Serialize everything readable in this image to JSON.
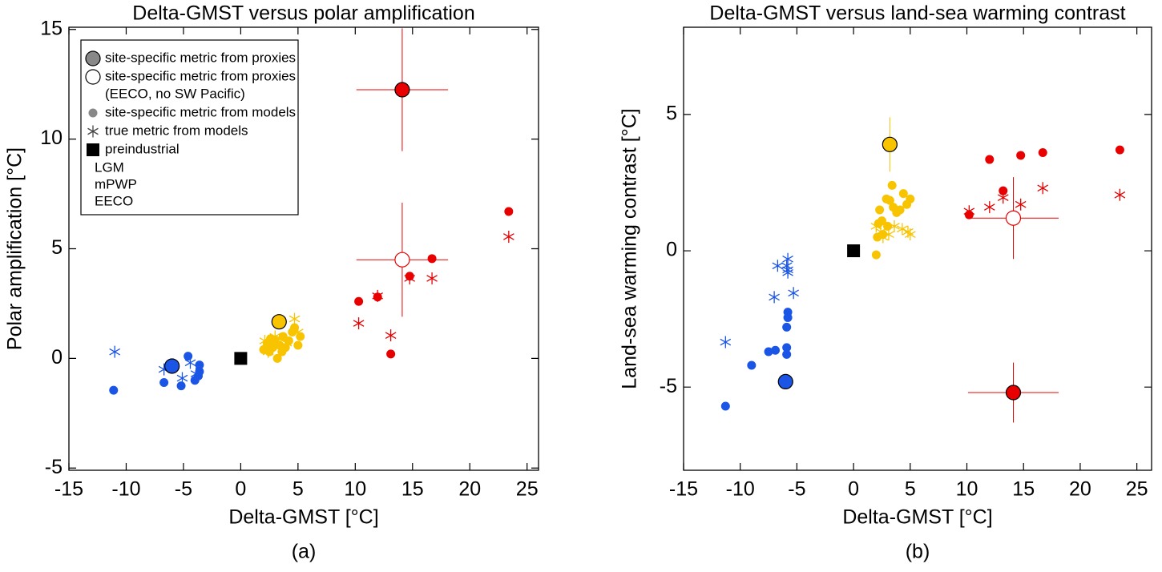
{
  "chart_data": [
    {
      "type": "scatter",
      "title": "Delta-GMST versus polar amplification",
      "xlabel": "Delta-GMST [°C]",
      "ylabel": "Polar amplification [°C]",
      "caption": "(a)",
      "xlim": [
        -15,
        26
      ],
      "ylim": [
        -5.1,
        15.1
      ],
      "xticks": [
        -15,
        -10,
        -5,
        0,
        5,
        10,
        15,
        20,
        25
      ],
      "yticks": [
        -5,
        0,
        5,
        10,
        15
      ],
      "legend": {
        "position": "upper left",
        "entries": [
          {
            "label": "site-specific metric from proxies",
            "marker": "proxy"
          },
          {
            "label": "site-specific metric from proxies",
            "sublabel": "(EECO, no SW Pacific)",
            "marker": "open"
          },
          {
            "label": "site-specific metric from models",
            "marker": "dot"
          },
          {
            "label": "true metric from models",
            "marker": "asterisk"
          },
          {
            "label": "preindustrial",
            "marker": "square"
          }
        ],
        "eras": [
          {
            "label": "LGM",
            "color": "#1a55e6"
          },
          {
            "label": "mPWP",
            "color": "#f8c400"
          },
          {
            "label": "EECO",
            "color": "#e80000"
          }
        ]
      },
      "series": [
        {
          "marker": "asterisk",
          "color": "#1a55e6",
          "x": [
            -11.0,
            -6.7,
            -5.1,
            -4.4,
            -3.9
          ],
          "values": [
            0.3,
            -0.5,
            -0.9,
            -0.2,
            -0.7
          ]
        },
        {
          "marker": "dot",
          "color": "#1a55e6",
          "x": [
            -11.1,
            -6.7,
            -5.2,
            -4.6,
            -4.0,
            -3.7,
            -3.6,
            -3.6
          ],
          "values": [
            -1.45,
            -1.1,
            -1.25,
            0.1,
            -1.0,
            -0.8,
            -0.6,
            -0.3
          ]
        },
        {
          "marker": "proxy",
          "color": "#1a55e6",
          "x": [
            -6.0
          ],
          "values": [
            -0.35
          ],
          "xerr": [
            0.6
          ],
          "yerr": [
            0.3
          ]
        },
        {
          "marker": "asterisk",
          "color": "#f8c400",
          "x": [
            2.1,
            2.6,
            3.0,
            3.5,
            4.0,
            4.7,
            5.0,
            2.4
          ],
          "values": [
            0.8,
            0.6,
            1.0,
            0.9,
            0.7,
            1.8,
            1.2,
            0.3
          ]
        },
        {
          "marker": "dot",
          "color": "#f8c400",
          "x": [
            2.0,
            2.3,
            2.5,
            2.8,
            3.0,
            3.2,
            3.4,
            3.7,
            3.9,
            4.2,
            4.5,
            4.7,
            5.0,
            5.2,
            2.6,
            3.6
          ],
          "values": [
            0.4,
            0.7,
            0.3,
            0.5,
            0.8,
            0.0,
            0.6,
            1.0,
            0.5,
            0.8,
            1.2,
            1.4,
            0.6,
            1.0,
            0.9,
            0.3
          ]
        },
        {
          "marker": "proxy",
          "color": "#f8c400",
          "x": [
            3.35
          ],
          "values": [
            1.67
          ]
        },
        {
          "marker": "asterisk",
          "color": "#e80000",
          "x": [
            10.3,
            11.95,
            13.1,
            14.75,
            16.7,
            23.4
          ],
          "values": [
            1.6,
            2.85,
            1.05,
            3.65,
            3.65,
            5.55
          ]
        },
        {
          "marker": "dot",
          "color": "#e80000",
          "x": [
            10.3,
            11.95,
            13.1,
            14.75,
            16.7,
            23.4
          ],
          "values": [
            2.6,
            2.8,
            0.2,
            3.75,
            4.55,
            6.7
          ]
        },
        {
          "marker": "open",
          "color": "#e80000",
          "x": [
            14.1
          ],
          "values": [
            4.5
          ],
          "xerr": [
            4.0
          ],
          "yerr": [
            2.6
          ]
        },
        {
          "marker": "proxy",
          "color": "#e80000",
          "x": [
            14.1
          ],
          "values": [
            12.25
          ],
          "xerr": [
            4.0
          ],
          "yerr": [
            2.8
          ]
        },
        {
          "marker": "square",
          "color": "#000000",
          "x": [
            0
          ],
          "values": [
            0
          ]
        }
      ]
    },
    {
      "type": "scatter",
      "title": "Delta-GMST versus land-sea warming contrast",
      "xlabel": "Delta-GMST [°C]",
      "ylabel": "Land-sea warming contrast [°C]",
      "caption": "(b)",
      "xlim": [
        -15,
        26.3
      ],
      "ylim": [
        -8.05,
        8.2
      ],
      "xticks": [
        -15,
        -10,
        -5,
        0,
        5,
        10,
        15,
        20,
        25
      ],
      "yticks": [
        -5,
        0,
        5
      ],
      "series": [
        {
          "marker": "asterisk",
          "color": "#1a55e6",
          "x": [
            -11.3,
            -7.0,
            -5.3,
            -6.7,
            -5.8,
            -5.8,
            -5.8,
            -5.9
          ],
          "values": [
            -3.35,
            -1.7,
            -1.55,
            -0.55,
            -0.3,
            -0.7,
            -0.8,
            -0.55
          ]
        },
        {
          "marker": "dot",
          "color": "#1a55e6",
          "x": [
            -11.3,
            -9.0,
            -7.5,
            -6.9,
            -5.9,
            -5.9,
            -5.9,
            -5.8,
            -5.8
          ],
          "values": [
            -5.7,
            -4.2,
            -3.7,
            -3.65,
            -3.55,
            -3.8,
            -2.8,
            -2.45,
            -2.25
          ]
        },
        {
          "marker": "proxy",
          "color": "#1a55e6",
          "x": [
            -6.0
          ],
          "values": [
            -4.8
          ]
        },
        {
          "marker": "asterisk",
          "color": "#f8c400",
          "x": [
            2.0,
            2.6,
            3.1,
            3.6,
            4.3,
            4.8,
            5.0,
            2.4
          ],
          "values": [
            0.9,
            0.5,
            0.6,
            0.9,
            0.8,
            0.7,
            0.6,
            0.7
          ]
        },
        {
          "marker": "dot",
          "color": "#f8c400",
          "x": [
            2.0,
            2.1,
            2.2,
            2.5,
            2.6,
            2.9,
            3.2,
            3.4,
            3.5,
            3.8,
            4.1,
            4.4,
            4.7,
            5.0,
            3.0,
            2.3
          ],
          "values": [
            -0.15,
            0.5,
            1.0,
            1.1,
            0.6,
            1.9,
            1.85,
            2.4,
            1.6,
            1.4,
            1.5,
            2.1,
            1.7,
            1.9,
            0.9,
            1.5
          ]
        },
        {
          "marker": "proxy",
          "color": "#f8c400",
          "x": [
            3.2
          ],
          "values": [
            3.9
          ],
          "yerr": [
            1.0
          ]
        },
        {
          "marker": "asterisk",
          "color": "#e80000",
          "x": [
            10.2,
            12.0,
            13.2,
            14.75,
            16.7,
            23.5
          ],
          "values": [
            1.45,
            1.6,
            1.95,
            1.7,
            2.3,
            2.05
          ]
        },
        {
          "marker": "dot",
          "color": "#e80000",
          "x": [
            10.2,
            12.0,
            13.2,
            14.75,
            16.7,
            23.5
          ],
          "values": [
            1.32,
            3.35,
            2.2,
            3.5,
            3.6,
            3.7
          ]
        },
        {
          "marker": "open",
          "color": "#e80000",
          "x": [
            14.1
          ],
          "values": [
            1.2
          ],
          "xerr": [
            4.0
          ],
          "yerr": [
            1.5
          ]
        },
        {
          "marker": "proxy",
          "color": "#e80000",
          "x": [
            14.1
          ],
          "values": [
            -5.2
          ],
          "xerr": [
            4.0
          ],
          "yerr": [
            1.1
          ]
        },
        {
          "marker": "square",
          "color": "#000000",
          "x": [
            0
          ],
          "values": [
            0
          ]
        }
      ]
    }
  ]
}
